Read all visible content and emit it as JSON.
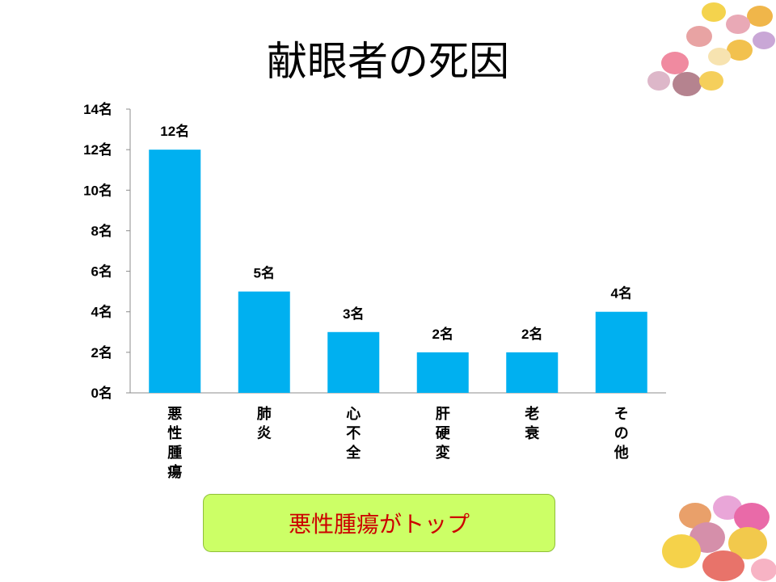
{
  "title": "献眼者の死因",
  "callout": "悪性腫瘍がトップ",
  "colors": {
    "bar": "#00b0f0",
    "callout_bg": "#ccff66",
    "callout_text": "#cc0000"
  },
  "chart_data": {
    "type": "bar",
    "title": "献眼者の死因",
    "categories": [
      "悪性腫瘍",
      "肺炎",
      "心不全",
      "肝硬変",
      "老衰",
      "その他"
    ],
    "values": [
      12,
      5,
      3,
      2,
      2,
      4
    ],
    "data_labels": [
      "12名",
      "5名",
      "3名",
      "2名",
      "2名",
      "4名"
    ],
    "unit": "名",
    "ylim": [
      0,
      14
    ],
    "yticks": [
      "0名",
      "2名",
      "4名",
      "6名",
      "8名",
      "10名",
      "12名",
      "14名"
    ],
    "grid": false,
    "legend": "none"
  }
}
